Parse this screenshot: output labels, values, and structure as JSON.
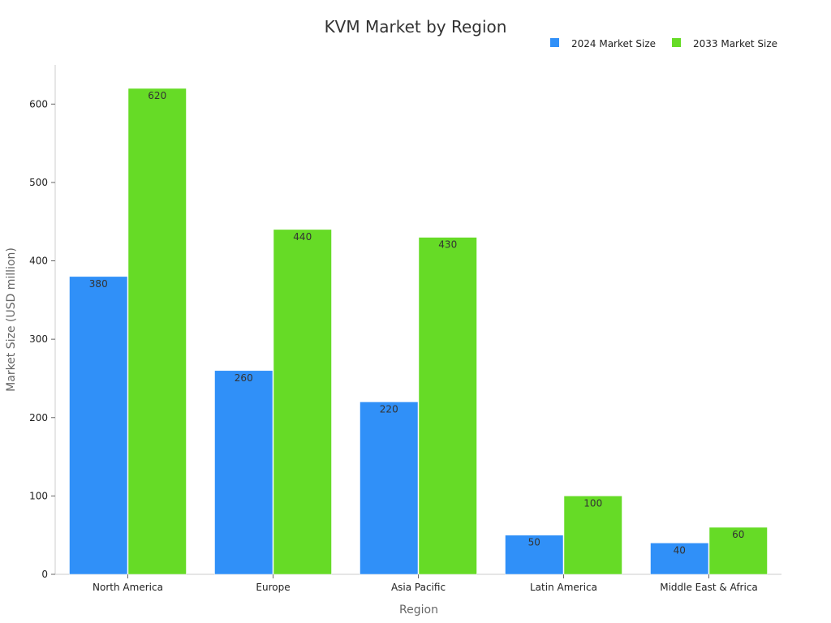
{
  "chart_data": {
    "type": "bar",
    "title": "KVM Market by Region",
    "xlabel": "Region",
    "ylabel": "Market Size (USD million)",
    "categories": [
      "North America",
      "Europe",
      "Asia Pacific",
      "Latin America",
      "Middle East & Africa"
    ],
    "series": [
      {
        "name": "2024 Market Size",
        "values": [
          380,
          260,
          220,
          50,
          40
        ],
        "color": "#3090F8"
      },
      {
        "name": "2033 Market Size",
        "values": [
          620,
          440,
          430,
          100,
          60
        ],
        "color": "#66DB26"
      }
    ],
    "ylim": [
      0,
      650
    ],
    "yticks": [
      0,
      100,
      200,
      300,
      400,
      500,
      600
    ],
    "grid": false,
    "legend_position": "top-right",
    "data_labels": true
  }
}
